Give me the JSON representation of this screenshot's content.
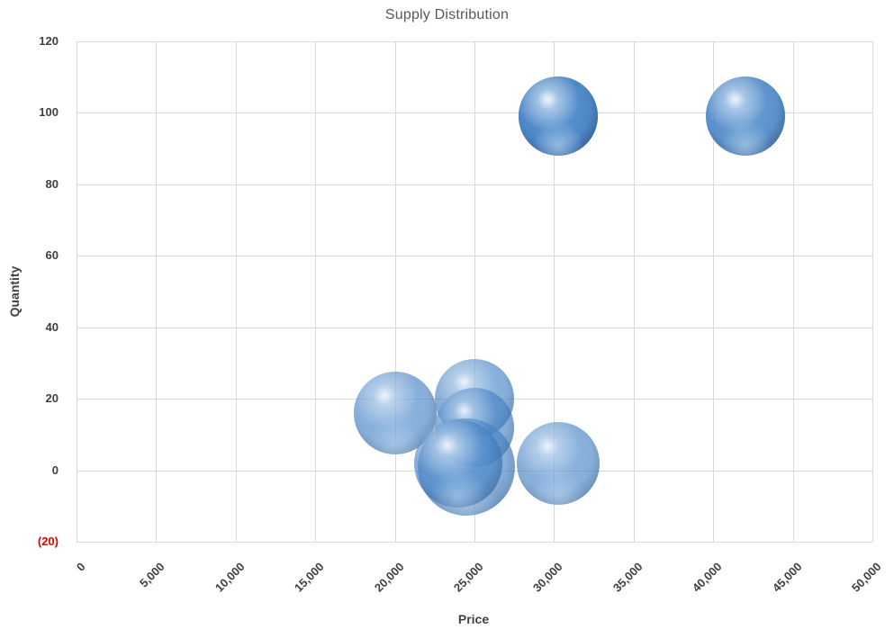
{
  "title": "Supply Distribution",
  "colors": {
    "background": "#ffffff",
    "gridline": "#d9d9d9",
    "tick_text": "#404040",
    "negative_tick_text": "#e00000",
    "title_text": "#595959",
    "bubble_base": "#4682c4"
  },
  "chart_data": {
    "type": "scatter",
    "variant": "3d-bubble",
    "title": "Supply Distribution",
    "xlabel": "Price",
    "ylabel": "Quantity",
    "xlim": [
      0,
      50000
    ],
    "ylim": [
      -20,
      120
    ],
    "grid": true,
    "legend": "none",
    "x_ticks": [
      {
        "value": 0,
        "label": "0"
      },
      {
        "value": 5000,
        "label": "5,000"
      },
      {
        "value": 10000,
        "label": "10,000"
      },
      {
        "value": 15000,
        "label": "15,000"
      },
      {
        "value": 20000,
        "label": "20,000"
      },
      {
        "value": 25000,
        "label": "25,000"
      },
      {
        "value": 30000,
        "label": "30,000"
      },
      {
        "value": 35000,
        "label": "35,000"
      },
      {
        "value": 40000,
        "label": "40,000"
      },
      {
        "value": 45000,
        "label": "45,000"
      },
      {
        "value": 50000,
        "label": "50,000"
      }
    ],
    "y_ticks": [
      {
        "value": 120,
        "label": "120"
      },
      {
        "value": 100,
        "label": "100"
      },
      {
        "value": 80,
        "label": "80"
      },
      {
        "value": 60,
        "label": "60"
      },
      {
        "value": 40,
        "label": "40"
      },
      {
        "value": 20,
        "label": "20"
      },
      {
        "value": 0,
        "label": "0"
      },
      {
        "value": -20,
        "label": "(20)"
      }
    ],
    "points": [
      {
        "price": 20000,
        "quantity": 16,
        "radius_px": 46,
        "stack": 1
      },
      {
        "price": 25000,
        "quantity": 20,
        "radius_px": 44,
        "stack": 1
      },
      {
        "price": 25000,
        "quantity": 12,
        "radius_px": 44,
        "stack": 1
      },
      {
        "price": 24500,
        "quantity": 1,
        "radius_px": 54,
        "stack": 1
      },
      {
        "price": 24000,
        "quantity": 2,
        "radius_px": 49,
        "stack": 1
      },
      {
        "price": 30250,
        "quantity": 2,
        "radius_px": 46,
        "stack": 1
      },
      {
        "price": 30250,
        "quantity": 99,
        "radius_px": 44,
        "stack": 3
      },
      {
        "price": 42000,
        "quantity": 99,
        "radius_px": 44,
        "stack": 2
      }
    ]
  }
}
